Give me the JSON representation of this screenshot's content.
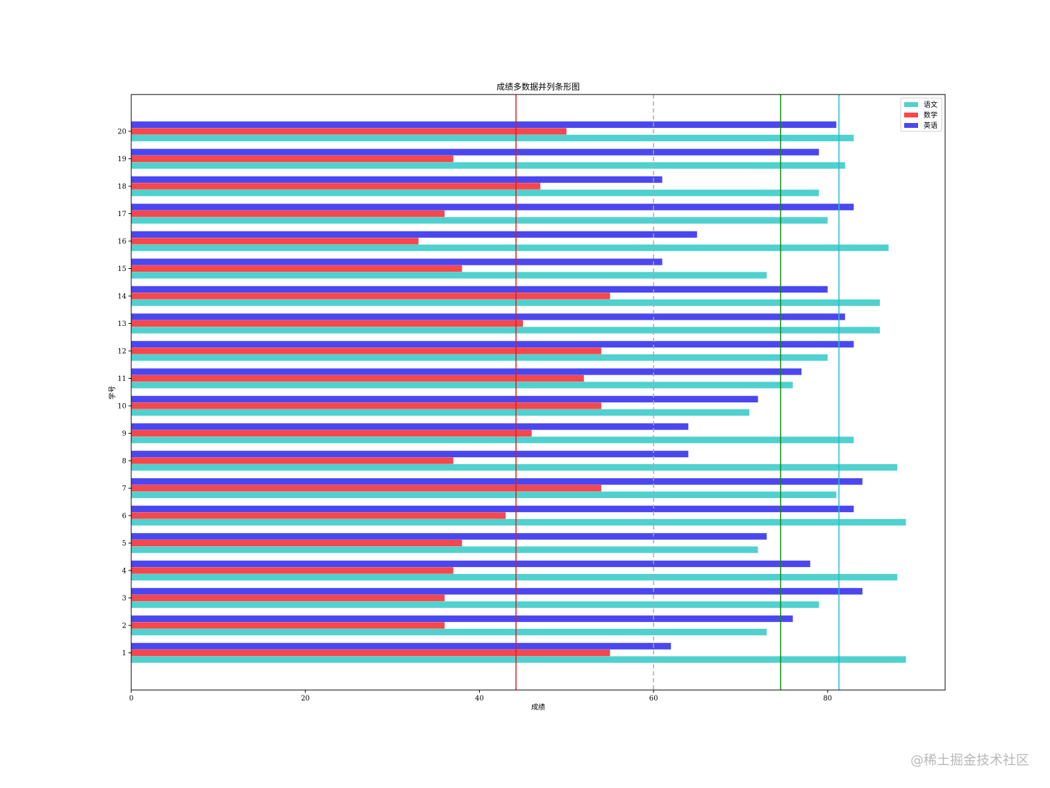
{
  "watermark": "@稀土掘金技术社区",
  "chart_data": {
    "type": "bar",
    "orientation": "horizontal",
    "title": "成绩多数据并列条形图",
    "xlabel": "成绩",
    "ylabel": "学号",
    "xlim": [
      0,
      93.5
    ],
    "xticks": [
      0,
      20,
      40,
      60,
      80
    ],
    "categories": [
      "1",
      "2",
      "3",
      "4",
      "5",
      "6",
      "7",
      "8",
      "9",
      "10",
      "11",
      "12",
      "13",
      "14",
      "15",
      "16",
      "17",
      "18",
      "19",
      "20"
    ],
    "series": [
      {
        "name": "语文",
        "color": "#4fd1cf",
        "values": [
          89,
          73,
          79,
          88,
          72,
          89,
          81,
          88,
          83,
          71,
          76,
          80,
          86,
          86,
          73,
          87,
          80,
          79,
          82,
          83
        ]
      },
      {
        "name": "数学",
        "color": "#f5474c",
        "values": [
          55,
          36,
          36,
          37,
          38,
          43,
          54,
          37,
          46,
          54,
          52,
          54,
          45,
          55,
          38,
          33,
          36,
          47,
          37,
          50
        ]
      },
      {
        "name": "英语",
        "color": "#4b47f0",
        "values": [
          62,
          76,
          84,
          78,
          73,
          83,
          84,
          64,
          64,
          72,
          77,
          83,
          82,
          80,
          61,
          65,
          83,
          61,
          79,
          81
        ]
      }
    ],
    "reference_lines": [
      {
        "value": 44.2,
        "color": "#e31a1c",
        "style": "solid"
      },
      {
        "value": 60,
        "color": "#aaaaaa",
        "style": "dashed"
      },
      {
        "value": 74.6,
        "color": "#118a11",
        "style": "solid"
      },
      {
        "value": 81.3,
        "color": "#1fbfcf",
        "style": "solid"
      }
    ],
    "legend_position": "top-right",
    "grid": false
  }
}
